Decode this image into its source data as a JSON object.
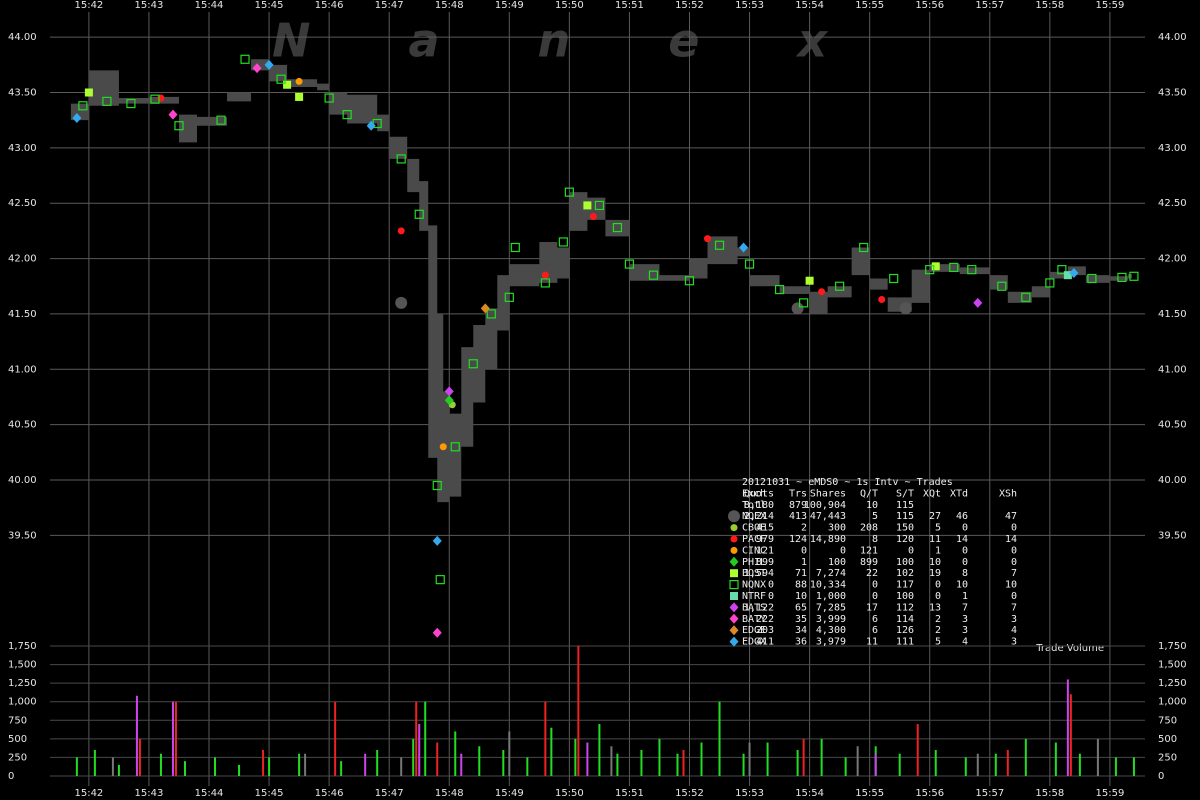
{
  "chart_data": [
    {
      "type": "scatter",
      "watermark": "Nanex",
      "xlim": [
        940.52,
        960.5
      ],
      "xticks": [
        {
          "value": 942,
          "label": "15:42"
        },
        {
          "value": 943,
          "label": "15:43"
        },
        {
          "value": 944,
          "label": "15:44"
        },
        {
          "value": 945,
          "label": "15:45"
        },
        {
          "value": 946,
          "label": "15:46"
        },
        {
          "value": 947,
          "label": "15:47"
        },
        {
          "value": 948,
          "label": "15:48"
        },
        {
          "value": 949,
          "label": "15:49"
        },
        {
          "value": 950,
          "label": "15:50"
        },
        {
          "value": 951,
          "label": "15:51"
        },
        {
          "value": 952,
          "label": "15:52"
        },
        {
          "value": 953,
          "label": "15:53"
        },
        {
          "value": 954,
          "label": "15:54"
        },
        {
          "value": 955,
          "label": "15:55"
        },
        {
          "value": 956,
          "label": "15:56"
        },
        {
          "value": 957,
          "label": "15:57"
        },
        {
          "value": 958,
          "label": "15:58"
        },
        {
          "value": 959,
          "label": "15:59"
        }
      ],
      "ylim": [
        38.6,
        44.2
      ],
      "yticks": [
        {
          "value": 44,
          "label": "44.00"
        },
        {
          "value": 43.5,
          "label": "43.50"
        },
        {
          "value": 43,
          "label": "43.00"
        },
        {
          "value": 42.5,
          "label": "42.50"
        },
        {
          "value": 42,
          "label": "42.00"
        },
        {
          "value": 41.5,
          "label": "41.50"
        },
        {
          "value": 41,
          "label": "41.00"
        },
        {
          "value": 40.5,
          "label": "40.50"
        },
        {
          "value": 40,
          "label": "40.00"
        },
        {
          "value": 39.5,
          "label": "39.50"
        }
      ],
      "grid": true,
      "nbbo": {
        "color": "#4a4a4a",
        "x": [
          941.7,
          942.0,
          942.5,
          943.0,
          943.5,
          943.8,
          944.3,
          944.7,
          945.0,
          945.3,
          945.8,
          946.0,
          946.3,
          946.8,
          947.0,
          947.3,
          947.5,
          947.65,
          947.8,
          947.9,
          948.0,
          948.2,
          948.4,
          948.6,
          948.8,
          949.0,
          949.5,
          949.8,
          950.0,
          950.3,
          950.6,
          951.0,
          951.5,
          952.0,
          952.3,
          952.8,
          953.0,
          953.5,
          954.0,
          954.3,
          954.7,
          955.0,
          955.3,
          955.7,
          956.0,
          956.5,
          957.0,
          957.3,
          957.7,
          958.0,
          958.3,
          958.6,
          959.0,
          959.3
        ],
        "low": [
          43.25,
          43.38,
          43.4,
          43.4,
          43.05,
          43.2,
          43.42,
          43.7,
          43.6,
          43.55,
          43.52,
          43.3,
          43.22,
          43.15,
          42.9,
          42.6,
          42.25,
          40.2,
          39.8,
          39.8,
          39.85,
          40.3,
          40.7,
          41.0,
          41.35,
          41.75,
          41.78,
          41.82,
          42.25,
          42.35,
          42.2,
          41.8,
          41.8,
          41.82,
          41.95,
          42.02,
          41.75,
          41.68,
          41.5,
          41.65,
          41.85,
          41.72,
          41.52,
          41.6,
          41.88,
          41.86,
          41.72,
          41.6,
          41.65,
          41.82,
          41.85,
          41.78,
          41.8,
          41.82
        ],
        "high": [
          43.4,
          43.7,
          43.45,
          43.46,
          43.3,
          43.28,
          43.5,
          43.8,
          43.75,
          43.62,
          43.58,
          43.5,
          43.48,
          43.3,
          43.1,
          42.9,
          42.7,
          42.3,
          41.5,
          40.8,
          40.6,
          41.2,
          41.4,
          41.55,
          41.85,
          41.95,
          42.15,
          42.1,
          42.6,
          42.55,
          42.35,
          41.95,
          41.85,
          42.0,
          42.2,
          42.1,
          41.85,
          41.75,
          41.7,
          41.75,
          42.1,
          41.82,
          41.65,
          41.9,
          41.95,
          41.92,
          41.85,
          41.7,
          41.75,
          41.88,
          41.93,
          41.85,
          41.84,
          41.86
        ]
      },
      "legend_table": {
        "title": "20121031 ~ eMDS0 ~ 1s Intv ~ Trades",
        "columns": [
          "Exch",
          "Quots",
          "Trs",
          "Shares",
          "Q/T",
          "S/T",
          "XQt",
          "XTd",
          "XSh"
        ],
        "rows": [
          {
            "cells": [
              "Totl",
              "8,180",
              "879",
              "100,904",
              "10",
              "115"
            ]
          },
          {
            "cells": [
              "NQEX",
              "2,214",
              "413",
              "47,443",
              "5",
              "115",
              "27",
              "46",
              "47"
            ],
            "shape": "circle-big",
            "color": "#555555",
            "x": [
              947.2,
              953.8,
              955.6
            ],
            "values": [
              41.6,
              41.55,
              41.55
            ]
          },
          {
            "cells": [
              "CBOE",
              "415",
              "2",
              "300",
              "208",
              "150",
              "5",
              "0",
              "0"
            ],
            "shape": "circle",
            "color": "#9acd32",
            "x": [
              948.05
            ],
            "values": [
              40.68
            ]
          },
          {
            "cells": [
              "PACF",
              "979",
              "124",
              "14,890",
              "8",
              "120",
              "11",
              "14",
              "14"
            ],
            "shape": "circle",
            "color": "#ff1a1a",
            "x": [
              943.2,
              947.2,
              949.6,
              950.4,
              952.3,
              954.2,
              955.2
            ],
            "values": [
              43.45,
              42.25,
              41.85,
              42.38,
              42.18,
              41.7,
              41.63
            ]
          },
          {
            "cells": [
              "CINC",
              "121",
              "0",
              "0",
              "121",
              "0",
              "1",
              "0",
              "0"
            ],
            "shape": "circle",
            "color": "#ff9900",
            "x": [
              945.5,
              947.9
            ],
            "values": [
              43.6,
              40.3
            ]
          },
          {
            "cells": [
              "PHIL",
              "899",
              "1",
              "100",
              "899",
              "100",
              "10",
              "0",
              "0"
            ],
            "shape": "diamond",
            "color": "#22cc22",
            "x": [
              948.0
            ],
            "values": [
              40.72
            ]
          },
          {
            "cells": [
              "BOST",
              "1,594",
              "71",
              "7,274",
              "22",
              "102",
              "19",
              "8",
              "7"
            ],
            "shape": "square",
            "color": "#adff2f",
            "x": [
              942.0,
              945.3,
              945.5,
              950.3,
              954.0,
              956.1
            ],
            "values": [
              43.5,
              43.57,
              43.46,
              42.48,
              41.8,
              41.93
            ]
          },
          {
            "cells": [
              "NQNX",
              "0",
              "88",
              "10,334",
              "0",
              "117",
              "0",
              "10",
              "10"
            ],
            "shape": "square-open",
            "color": "#22dd22",
            "x": [
              941.9,
              942.3,
              942.7,
              943.1,
              943.5,
              944.2,
              944.6,
              945.2,
              946.0,
              946.3,
              946.8,
              947.2,
              947.5,
              947.8,
              947.85,
              948.1,
              948.4,
              948.7,
              949.0,
              949.1,
              949.6,
              949.9,
              950.0,
              950.5,
              950.8,
              951.0,
              951.4,
              952.0,
              952.5,
              953.0,
              953.5,
              953.9,
              954.5,
              954.9,
              955.4,
              956.0,
              956.4,
              956.7,
              957.2,
              957.6,
              958.0,
              958.2,
              958.7,
              959.2,
              959.4
            ],
            "values": [
              43.38,
              43.42,
              43.4,
              43.44,
              43.2,
              43.25,
              43.8,
              43.62,
              43.45,
              43.3,
              43.22,
              42.9,
              42.4,
              39.95,
              39.1,
              40.3,
              41.05,
              41.5,
              41.65,
              42.1,
              41.78,
              42.15,
              42.6,
              42.48,
              42.28,
              41.95,
              41.85,
              41.8,
              42.12,
              41.95,
              41.72,
              41.6,
              41.75,
              42.1,
              41.82,
              41.9,
              41.92,
              41.9,
              41.75,
              41.65,
              41.78,
              41.9,
              41.82,
              41.83,
              41.84
            ]
          },
          {
            "cells": [
              "NTRF",
              "0",
              "10",
              "1,000",
              "0",
              "100",
              "0",
              "1",
              "0"
            ],
            "shape": "square",
            "color": "#66ddaa",
            "x": [
              958.3
            ],
            "values": [
              41.85
            ]
          },
          {
            "cells": [
              "BATS",
              "1,122",
              "65",
              "7,285",
              "17",
              "112",
              "13",
              "7",
              "7"
            ],
            "shape": "diamond",
            "color": "#cc44ee",
            "x": [
              948.0,
              956.8
            ],
            "values": [
              40.8,
              41.6
            ]
          },
          {
            "cells": [
              "BATY",
              "222",
              "35",
              "3,999",
              "6",
              "114",
              "2",
              "3",
              "3"
            ],
            "shape": "diamond",
            "color": "#ff44cc",
            "x": [
              943.4,
              944.8,
              947.8
            ],
            "values": [
              43.3,
              43.72,
              38.62
            ]
          },
          {
            "cells": [
              "EDGE",
              "203",
              "34",
              "4,300",
              "6",
              "126",
              "2",
              "3",
              "4"
            ],
            "shape": "diamond",
            "color": "#dd8822",
            "x": [
              948.6
            ],
            "values": [
              41.55
            ]
          },
          {
            "cells": [
              "EDGX",
              "411",
              "36",
              "3,979",
              "11",
              "111",
              "5",
              "4",
              "3"
            ],
            "shape": "diamond",
            "color": "#33aaee",
            "x": [
              941.8,
              945.0,
              946.7,
              947.8,
              952.9,
              958.4
            ],
            "values": [
              43.27,
              43.75,
              43.2,
              39.45,
              42.1,
              41.87
            ]
          }
        ]
      }
    },
    {
      "type": "bar",
      "title": "Trade Volume",
      "ylim": [
        0,
        1750
      ],
      "yticks": [
        0,
        250,
        500,
        750,
        {
          "value": 1000,
          "label": "1,000"
        },
        {
          "value": 1250,
          "label": "1,250"
        },
        {
          "value": 1500,
          "label": "1,500"
        },
        {
          "value": 1750,
          "label": "1,750"
        }
      ],
      "series": [
        {
          "color": "#22dd22",
          "x": [
            941.8,
            942.1,
            942.5,
            943.2,
            943.6,
            944.1,
            944.5,
            945.0,
            945.5,
            946.2,
            946.8,
            947.4,
            947.6,
            948.1,
            948.5,
            948.9,
            949.3,
            949.7,
            950.1,
            950.5,
            950.8,
            951.2,
            951.5,
            951.8,
            952.2,
            952.5,
            952.9,
            953.3,
            953.8,
            954.2,
            954.6,
            955.1,
            955.5,
            956.1,
            956.6,
            957.1,
            957.6,
            958.1,
            958.5,
            959.1,
            959.4
          ],
          "values": [
            250,
            350,
            150,
            300,
            200,
            250,
            150,
            250,
            300,
            200,
            350,
            500,
            1000,
            600,
            400,
            350,
            250,
            650,
            500,
            700,
            300,
            350,
            500,
            300,
            450,
            1000,
            300,
            450,
            350,
            500,
            250,
            400,
            300,
            350,
            250,
            300,
            500,
            450,
            300,
            250,
            250
          ]
        },
        {
          "color": "#ee2222",
          "x": [
            942.85,
            943.45,
            944.9,
            946.1,
            947.45,
            947.8,
            949.6,
            950.15,
            951.9,
            953.9,
            955.8,
            957.3,
            958.35
          ],
          "values": [
            500,
            1000,
            350,
            1000,
            1000,
            450,
            1000,
            1750,
            350,
            500,
            700,
            350,
            1100
          ]
        },
        {
          "color": "#cc44ee",
          "x": [
            942.8,
            943.4,
            946.6,
            947.5,
            948.2,
            950.3,
            955.1,
            958.3
          ],
          "values": [
            1080,
            1000,
            300,
            700,
            300,
            450,
            300,
            1300
          ]
        },
        {
          "color": "#777777",
          "x": [
            942.4,
            945.6,
            947.2,
            949.0,
            950.7,
            953.0,
            954.8,
            956.8,
            958.8
          ],
          "values": [
            250,
            300,
            250,
            600,
            400,
            450,
            400,
            300,
            500
          ]
        }
      ]
    }
  ]
}
